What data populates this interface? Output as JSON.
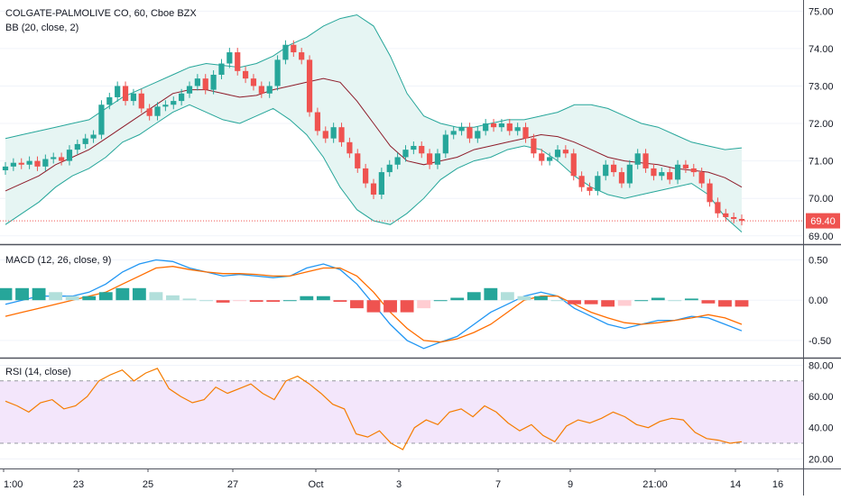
{
  "colors": {
    "up": "#26a69a",
    "down": "#ef5350",
    "bb_band": "#26a69a",
    "bb_basis": "#8e1c2a",
    "bb_fill": "#e6f5f3",
    "macd_line": "#2196f3",
    "signal_line": "#ff6d00",
    "hist_up_strong": "#26a69a",
    "hist_up_weak": "#b2dfdb",
    "hist_down_strong": "#ef5350",
    "hist_down_weak": "#ffcdd2",
    "rsi_line": "#f57c00",
    "rsi_band_fill": "#f3e6fb",
    "price_line": "#ef5350",
    "grid": "#f0f3fa"
  },
  "main_pane": {
    "title": "COLGATE-PALMOLIVE CO, 60, Cboe BZX",
    "indicator": "BB (20, close, 2)",
    "last_price_label": "69.40"
  },
  "macd_pane": {
    "title": "MACD (12, 26, close, 9)"
  },
  "rsi_pane": {
    "title": "RSI (14, close)"
  },
  "x_axis": {
    "labels": [
      "1:00",
      "23",
      "25",
      "27",
      "Oct",
      "3",
      "7",
      "9",
      "21:00",
      "14",
      "16"
    ]
  },
  "chart_data": [
    {
      "type": "candlestick",
      "title": "COLGATE-PALMOLIVE CO, 60, Cboe BZX",
      "indicator": "BB (20, close, 2)",
      "ylim": [
        68.85,
        75.2
      ],
      "yticks": [
        69,
        70,
        71,
        72,
        73,
        74,
        75
      ],
      "last_price": 69.4,
      "series": [
        {
          "name": "close",
          "values": [
            70.85,
            70.95,
            70.9,
            71.0,
            70.85,
            71.05,
            71.1,
            71.0,
            71.3,
            71.45,
            71.6,
            71.7,
            72.5,
            72.7,
            73.0,
            72.6,
            72.8,
            72.4,
            72.2,
            72.45,
            72.5,
            72.6,
            72.8,
            73.0,
            73.2,
            72.9,
            73.3,
            73.6,
            73.9,
            73.4,
            73.2,
            73.0,
            72.8,
            73.0,
            73.7,
            74.1,
            73.9,
            73.7,
            72.3,
            71.8,
            71.6,
            71.9,
            71.5,
            71.2,
            70.8,
            70.4,
            70.1,
            70.7,
            70.9,
            71.1,
            71.3,
            71.4,
            71.2,
            70.9,
            71.2,
            71.7,
            71.8,
            71.9,
            71.6,
            71.8,
            72.0,
            71.9,
            72.0,
            71.8,
            71.9,
            71.6,
            71.2,
            71.0,
            71.1,
            71.3,
            71.2,
            70.6,
            70.3,
            70.2,
            70.6,
            70.9,
            70.7,
            70.4,
            70.9,
            71.2,
            70.8,
            70.6,
            70.7,
            70.5,
            70.9,
            70.8,
            70.7,
            70.4,
            69.9,
            69.6,
            69.5,
            69.45,
            69.4
          ]
        },
        {
          "name": "BB upper",
          "values": [
            71.6,
            71.7,
            71.8,
            71.9,
            72.0,
            72.1,
            72.4,
            72.7,
            72.9,
            73.1,
            73.3,
            73.5,
            73.6,
            73.55,
            73.5,
            73.6,
            73.8,
            74.1,
            74.3,
            74.6,
            74.8,
            74.9,
            74.6,
            73.8,
            72.8,
            72.2,
            72.0,
            71.9,
            71.9,
            72.0,
            72.1,
            72.1,
            72.2,
            72.3,
            72.5,
            72.5,
            72.4,
            72.2,
            72.0,
            71.9,
            71.7,
            71.5,
            71.4,
            71.3,
            71.35
          ]
        },
        {
          "name": "BB basis",
          "values": [
            70.2,
            70.4,
            70.6,
            70.9,
            71.1,
            71.3,
            71.6,
            71.9,
            72.2,
            72.5,
            72.8,
            72.9,
            72.9,
            72.8,
            72.7,
            72.75,
            72.9,
            73.0,
            73.1,
            73.2,
            73.1,
            72.6,
            72.0,
            71.4,
            71.0,
            70.9,
            71.0,
            71.1,
            71.3,
            71.4,
            71.5,
            71.6,
            71.7,
            71.65,
            71.5,
            71.3,
            71.1,
            71.0,
            70.95,
            70.9,
            70.8,
            70.75,
            70.7,
            70.55,
            70.3
          ]
        },
        {
          "name": "BB lower",
          "values": [
            69.3,
            69.6,
            69.9,
            70.3,
            70.6,
            70.8,
            71.1,
            71.5,
            71.7,
            72.0,
            72.3,
            72.5,
            72.3,
            72.1,
            72.0,
            72.2,
            72.4,
            72.1,
            71.7,
            71.1,
            70.3,
            69.7,
            69.4,
            69.3,
            69.6,
            70.0,
            70.5,
            70.8,
            71.0,
            71.1,
            71.3,
            71.4,
            71.3,
            71.0,
            70.6,
            70.3,
            70.1,
            70.0,
            70.1,
            70.2,
            70.3,
            70.4,
            70.1,
            69.5,
            69.1
          ]
        }
      ]
    },
    {
      "type": "line",
      "title": "MACD (12, 26, close, 9)",
      "ylim": [
        -0.68,
        0.64
      ],
      "yticks": [
        0.5,
        0.0,
        -0.5
      ],
      "series": [
        {
          "name": "MACD",
          "values": [
            -0.05,
            0.0,
            0.05,
            0.05,
            0.05,
            0.1,
            0.2,
            0.35,
            0.45,
            0.5,
            0.48,
            0.4,
            0.35,
            0.3,
            0.32,
            0.3,
            0.28,
            0.3,
            0.4,
            0.45,
            0.38,
            0.2,
            -0.05,
            -0.3,
            -0.5,
            -0.6,
            -0.52,
            -0.45,
            -0.3,
            -0.15,
            -0.05,
            0.05,
            0.1,
            0.05,
            -0.1,
            -0.2,
            -0.3,
            -0.35,
            -0.3,
            -0.25,
            -0.25,
            -0.2,
            -0.22,
            -0.3,
            -0.38
          ]
        },
        {
          "name": "Signal",
          "values": [
            -0.2,
            -0.15,
            -0.1,
            -0.05,
            0.0,
            0.05,
            0.1,
            0.2,
            0.3,
            0.4,
            0.42,
            0.38,
            0.35,
            0.33,
            0.33,
            0.32,
            0.3,
            0.3,
            0.35,
            0.4,
            0.4,
            0.3,
            0.1,
            -0.15,
            -0.35,
            -0.5,
            -0.52,
            -0.48,
            -0.4,
            -0.3,
            -0.15,
            0.0,
            0.05,
            0.05,
            -0.05,
            -0.15,
            -0.22,
            -0.28,
            -0.3,
            -0.28,
            -0.25,
            -0.22,
            -0.18,
            -0.22,
            -0.3
          ]
        },
        {
          "name": "Histogram",
          "values": [
            0.15,
            0.15,
            0.15,
            0.1,
            0.05,
            0.05,
            0.1,
            0.15,
            0.15,
            0.1,
            0.06,
            0.02,
            0.0,
            -0.03,
            -0.01,
            -0.02,
            -0.02,
            0.0,
            0.05,
            0.05,
            -0.02,
            -0.1,
            -0.15,
            -0.15,
            -0.15,
            -0.1,
            0.0,
            0.03,
            0.1,
            0.15,
            0.1,
            0.05,
            0.05,
            0.0,
            -0.05,
            -0.05,
            -0.08,
            -0.07,
            0.0,
            0.03,
            0.0,
            0.02,
            -0.04,
            -0.08,
            -0.08
          ]
        }
      ]
    },
    {
      "type": "line",
      "title": "RSI (14, close)",
      "ylim": [
        15,
        82
      ],
      "yticks": [
        80,
        60,
        40,
        20
      ],
      "bands": [
        30,
        70
      ],
      "series": [
        {
          "name": "RSI",
          "values": [
            57,
            54,
            50,
            56,
            58,
            52,
            54,
            60,
            70,
            74,
            77,
            70,
            75,
            78,
            65,
            60,
            56,
            58,
            66,
            62,
            65,
            68,
            62,
            58,
            70,
            73,
            68,
            62,
            55,
            52,
            36,
            34,
            38,
            30,
            26,
            40,
            45,
            42,
            50,
            52,
            47,
            54,
            50,
            43,
            38,
            42,
            35,
            31,
            41,
            45,
            43,
            46,
            50,
            47,
            42,
            40,
            44,
            46,
            45,
            37,
            33,
            32,
            30,
            31
          ]
        }
      ]
    }
  ]
}
